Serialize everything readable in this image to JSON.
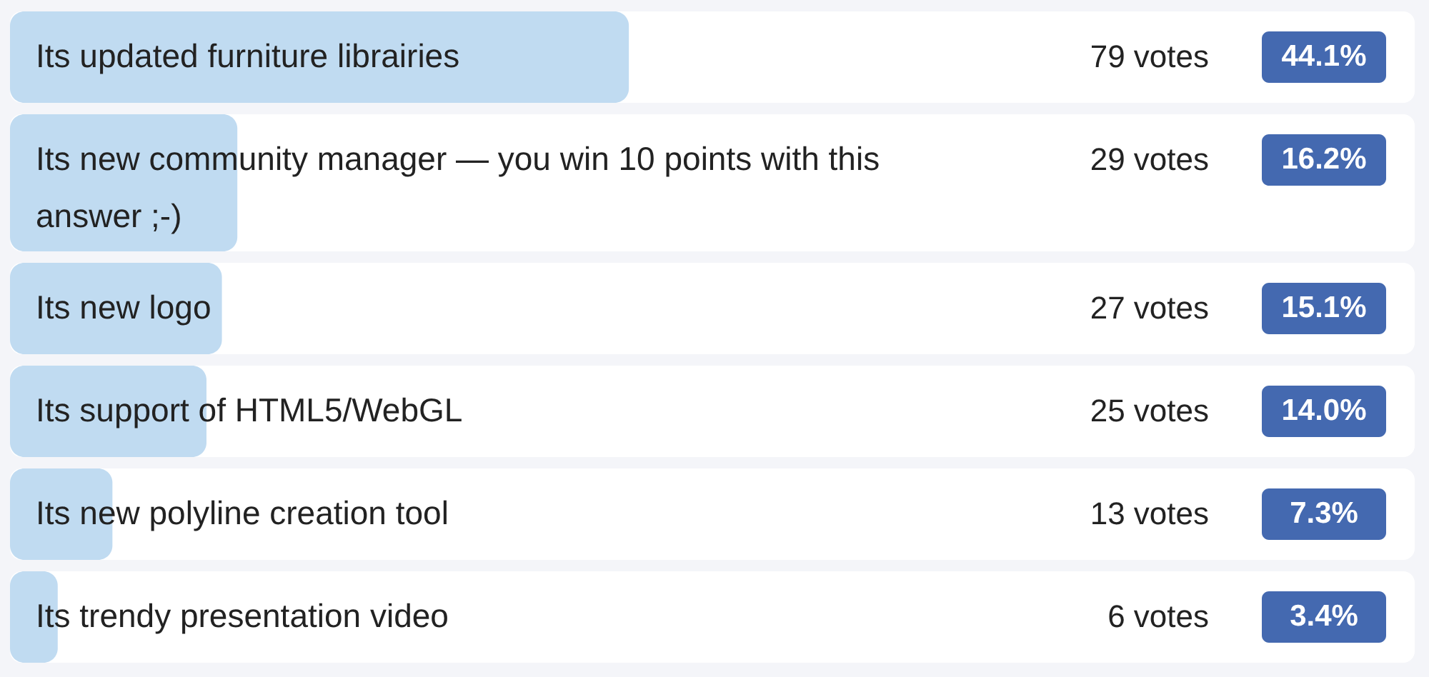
{
  "chart_data": {
    "type": "bar",
    "orientation": "horizontal",
    "categories": [
      "Its updated furniture librairies",
      "Its new community manager — you win 10 points with this answer ;-)",
      "Its new logo",
      "Its support of HTML5/WebGL",
      "Its new polyline creation tool",
      "Its trendy presentation video"
    ],
    "values": [
      44.1,
      16.2,
      15.1,
      14.0,
      7.3,
      3.4
    ],
    "value_labels": [
      "44.1%",
      "16.2%",
      "15.1%",
      "14.0%",
      "7.3%",
      "3.4%"
    ],
    "color": "#c0dbf1",
    "annotations": [
      "79 votes",
      "29 votes",
      "27 votes",
      "25 votes",
      "13 votes",
      "6 votes"
    ]
  }
}
